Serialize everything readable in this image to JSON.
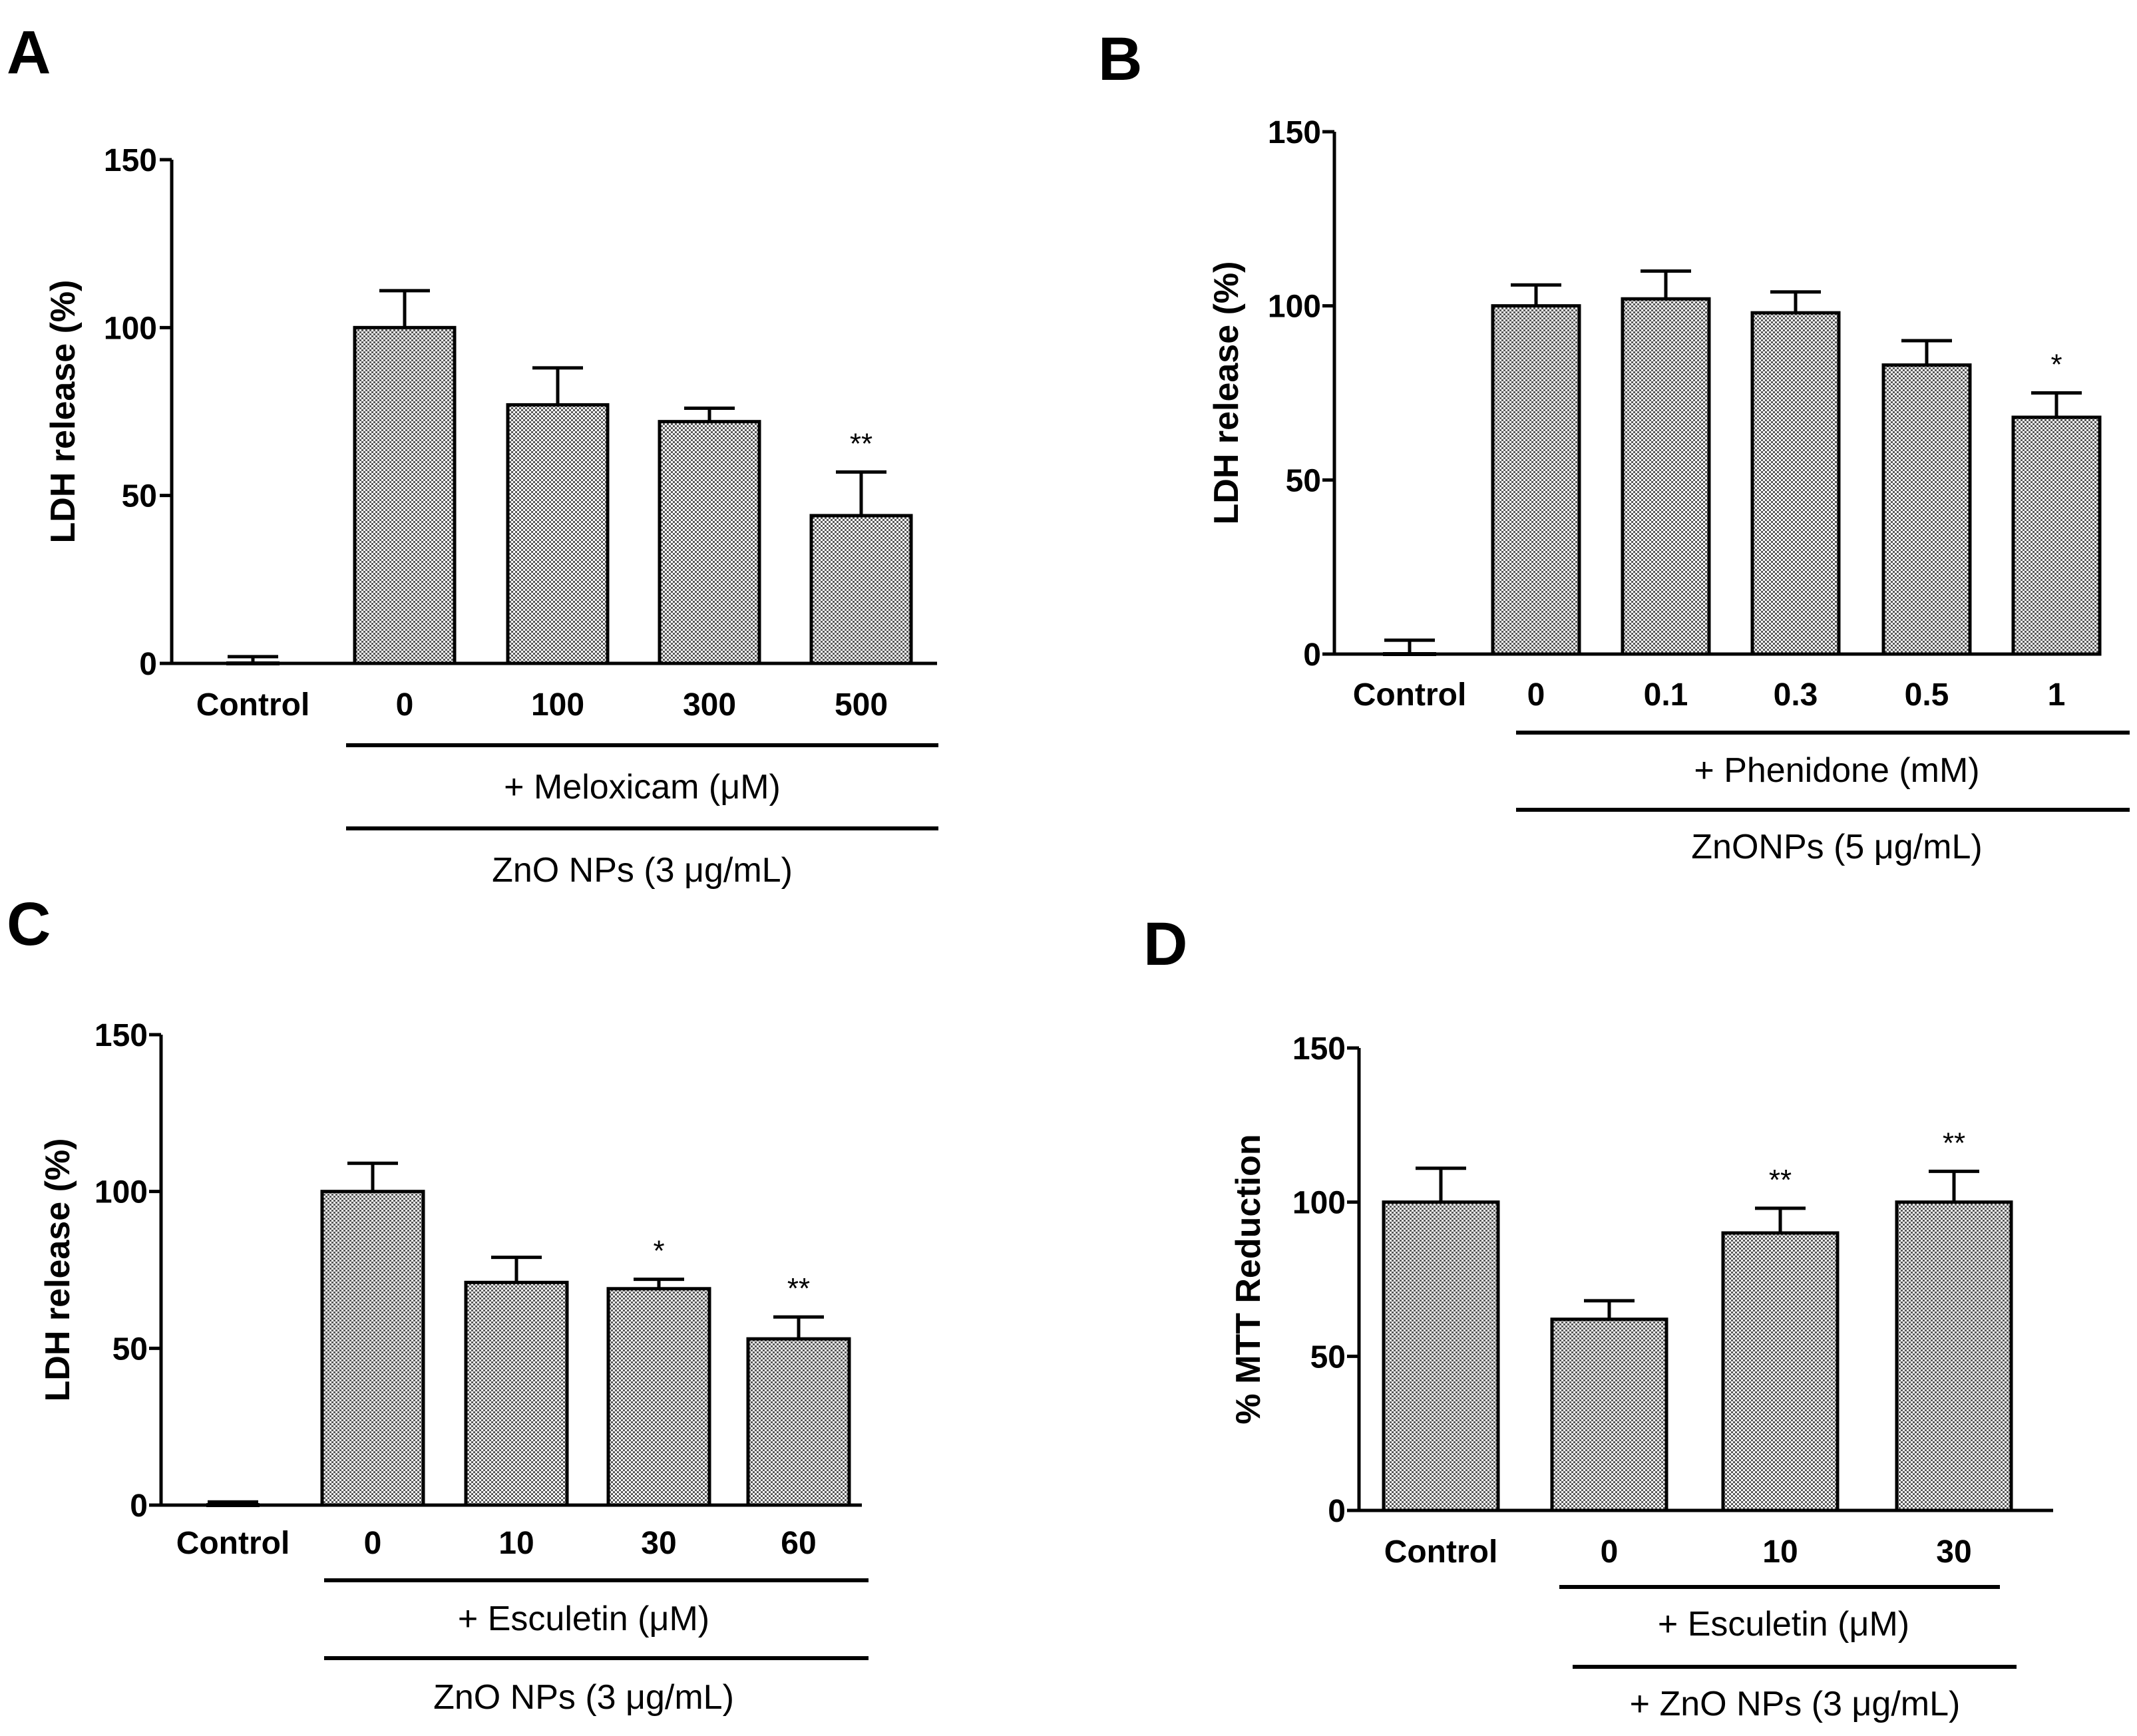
{
  "colors": {
    "bar_fill": "#6f6f6f",
    "bar_light": "#ffffff",
    "ink": "#000000"
  },
  "chart_data": [
    {
      "panel": "A",
      "type": "bar",
      "ylabel": "LDH release (%)",
      "ylim": [
        0,
        150
      ],
      "yticks": [
        0,
        50,
        100,
        150
      ],
      "categories": [
        "Control",
        "0",
        "100",
        "300",
        "500"
      ],
      "values": [
        0,
        100,
        77,
        72,
        44
      ],
      "errors": [
        2,
        11,
        11,
        4,
        13
      ],
      "significance": [
        "",
        "",
        "",
        "",
        "**"
      ],
      "group_labels": [
        "+ Meloxicam (μM)",
        "ZnO NPs (3 μg/mL)"
      ]
    },
    {
      "panel": "B",
      "type": "bar",
      "ylabel": "LDH release (%)",
      "ylim": [
        0,
        150
      ],
      "yticks": [
        0,
        50,
        100,
        150
      ],
      "categories": [
        "Control",
        "0",
        "0.1",
        "0.3",
        "0.5",
        "1"
      ],
      "values": [
        0,
        100,
        102,
        98,
        83,
        68
      ],
      "errors": [
        4,
        6,
        8,
        6,
        7,
        7
      ],
      "significance": [
        "",
        "",
        "",
        "",
        "",
        "*"
      ],
      "group_labels": [
        "+ Phenidone (mM)",
        "ZnONPs (5 μg/mL)"
      ]
    },
    {
      "panel": "C",
      "type": "bar",
      "ylabel": "LDH release (%)",
      "ylim": [
        0,
        150
      ],
      "yticks": [
        0,
        50,
        100,
        150
      ],
      "categories": [
        "Control",
        "0",
        "10",
        "30",
        "60"
      ],
      "values": [
        0,
        100,
        71,
        69,
        53
      ],
      "errors": [
        1,
        9,
        8,
        3,
        7
      ],
      "significance": [
        "",
        "",
        "",
        "*",
        "**"
      ],
      "group_labels": [
        "+ Esculetin (μM)",
        "ZnO NPs (3 μg/mL)"
      ]
    },
    {
      "panel": "D",
      "type": "bar",
      "ylabel": "% MTT Reduction",
      "ylim": [
        0,
        150
      ],
      "yticks": [
        0,
        50,
        100,
        150
      ],
      "categories": [
        "Control",
        "0",
        "10",
        "30"
      ],
      "values": [
        100,
        62,
        90,
        100
      ],
      "errors": [
        11,
        6,
        8,
        10
      ],
      "significance": [
        "",
        "",
        "**",
        "**"
      ],
      "group_labels": [
        "+ Esculetin (μM)",
        "+ ZnO NPs (3 μg/mL)"
      ]
    }
  ]
}
